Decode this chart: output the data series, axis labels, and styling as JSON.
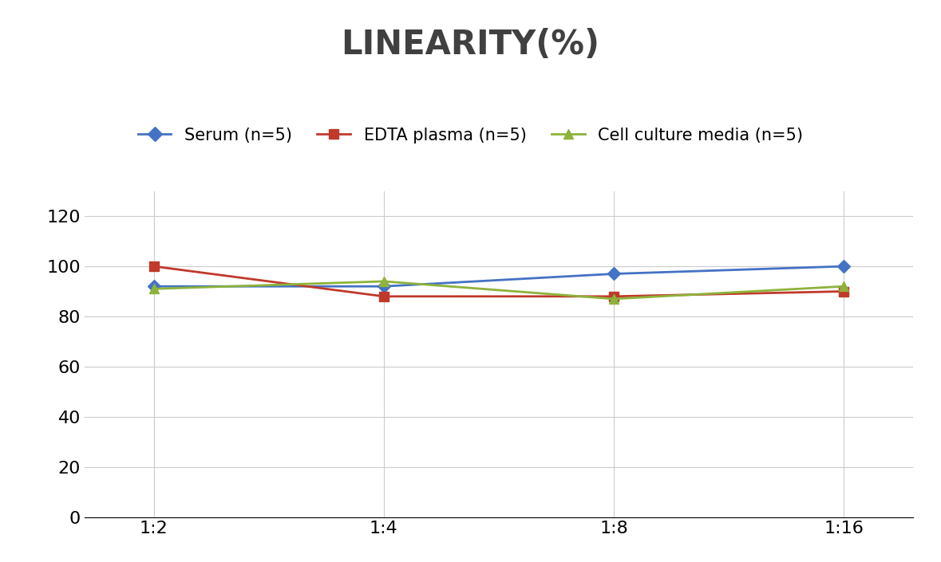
{
  "title": "LINEARITY(%)",
  "title_fontsize": 30,
  "title_fontweight": "bold",
  "title_color": "#404040",
  "x_labels": [
    "1:2",
    "1:4",
    "1:8",
    "1:16"
  ],
  "x_positions": [
    0,
    1,
    2,
    3
  ],
  "serum": [
    92,
    92,
    97,
    100
  ],
  "edta_plasma": [
    100,
    88,
    88,
    90
  ],
  "cell_culture": [
    91,
    94,
    87,
    92
  ],
  "serum_color": "#4472C4",
  "edta_color": "#C0392B",
  "cell_color": "#8DB33A",
  "legend_labels": [
    "Serum (n=5)",
    "EDTA plasma (n=5)",
    "Cell culture media (n=5)"
  ],
  "ylim": [
    0,
    130
  ],
  "yticks": [
    0,
    20,
    40,
    60,
    80,
    100,
    120
  ],
  "background_color": "#FFFFFF",
  "grid_color": "#CCCCCC",
  "marker_size": 8,
  "linewidth": 2,
  "tick_fontsize": 16,
  "legend_fontsize": 15
}
